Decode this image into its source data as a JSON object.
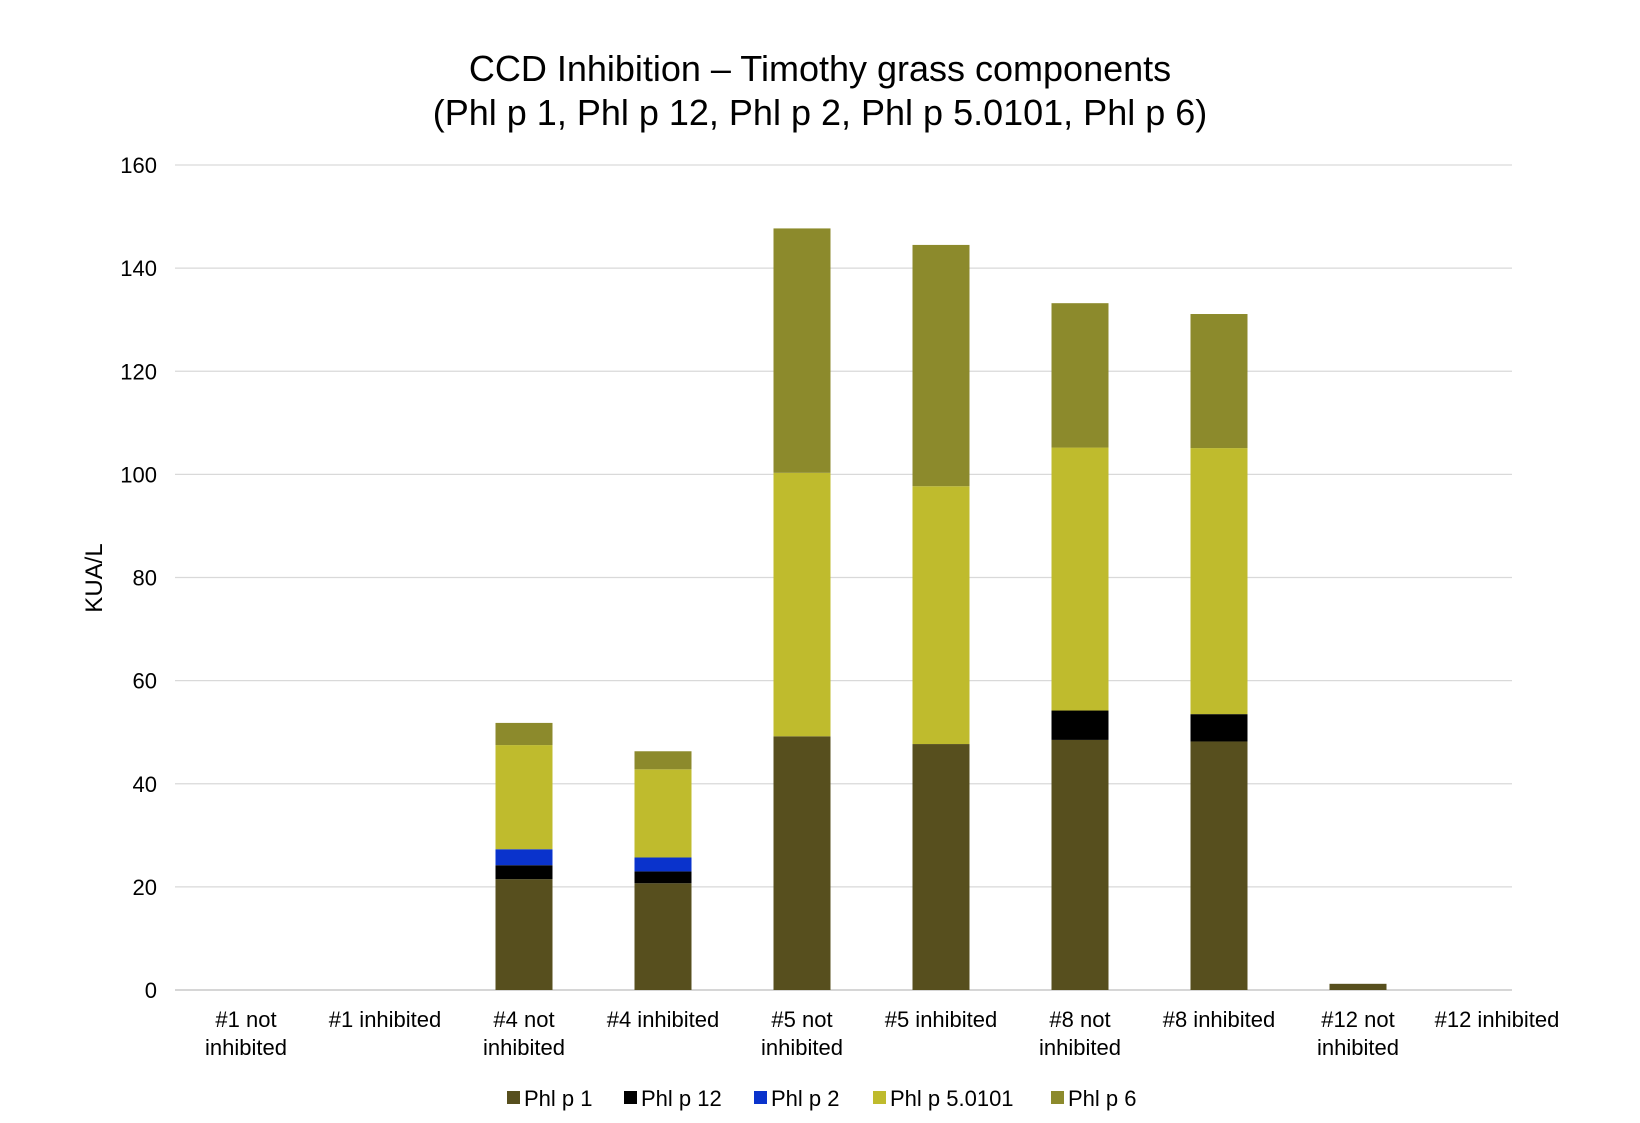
{
  "chart_data": {
    "type": "bar",
    "stacked": true,
    "title": "CCD Inhibition – Timothy grass components",
    "subtitle": "(Phl p 1, Phl p 12, Phl p 2, Phl p 5.0101, Phl p 6)",
    "xlabel": "",
    "ylabel": "KUA/L",
    "ylim": [
      0,
      160
    ],
    "yticks": [
      0,
      20,
      40,
      60,
      80,
      100,
      120,
      140,
      160
    ],
    "grid": true,
    "legend_position": "bottom",
    "categories": [
      [
        "#1 not",
        "inhibited"
      ],
      [
        "#1 inhibited"
      ],
      [
        "#4 not",
        "inhibited"
      ],
      [
        "#4 inhibited"
      ],
      [
        "#5 not",
        "inhibited"
      ],
      [
        "#5 inhibited"
      ],
      [
        "#8 not",
        "inhibited"
      ],
      [
        "#8 inhibited"
      ],
      [
        "#12 not",
        "inhibited"
      ],
      [
        "#12 inhibited"
      ]
    ],
    "series": [
      {
        "name": "Phl p 1",
        "color": "#574f1e",
        "values": [
          0,
          0,
          21.5,
          20.7,
          49.2,
          47.7,
          48.5,
          48.2,
          1.2,
          0
        ]
      },
      {
        "name": "Phl p 12",
        "color": "#000000",
        "values": [
          0,
          0,
          2.7,
          2.3,
          0,
          0,
          5.7,
          5.3,
          0,
          0
        ]
      },
      {
        "name": "Phl p 2",
        "color": "#0a33cc",
        "values": [
          0,
          0,
          3.1,
          2.7,
          0,
          0,
          0,
          0,
          0,
          0
        ]
      },
      {
        "name": "Phl p 5.0101",
        "color": "#bfbb2d",
        "values": [
          0,
          0,
          20.2,
          17.1,
          51.1,
          50.0,
          51.0,
          51.6,
          0,
          0
        ]
      },
      {
        "name": "Phl p 6",
        "color": "#8c8a2c",
        "values": [
          0,
          0,
          4.3,
          3.5,
          47.4,
          46.8,
          28.0,
          26.0,
          0,
          0
        ]
      }
    ]
  }
}
